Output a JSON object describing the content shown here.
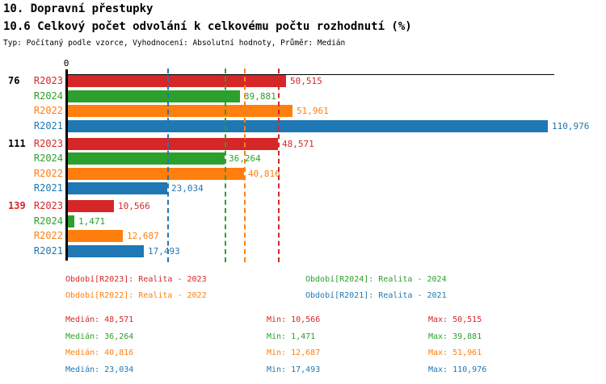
{
  "title1": "10. Dopravní přestupky",
  "title2": "10.6 Celkový počet odvolání k celkovému počtu rozhodnutí (%)",
  "subtitle": "Typ: Počítaný podle vzorce, Vyhodnocení: Absolutní hodnoty, Průměr: Medián",
  "axis": {
    "zero_label": "0"
  },
  "colors": {
    "R2023": "#d62728",
    "R2024": "#2ca02c",
    "R2022": "#ff7f0e",
    "R2021": "#1f77b4",
    "axis": "#000000",
    "group_label_default": "#000000",
    "group_label_alert": "#d62728"
  },
  "chart_data": {
    "type": "bar",
    "orientation": "horizontal",
    "xlim": [
      0,
      111500
    ],
    "grid": false,
    "series_order": [
      "R2023",
      "R2024",
      "R2022",
      "R2021"
    ],
    "groups": [
      {
        "label": "76",
        "label_color": "#000000",
        "bars": [
          {
            "series": "R2023",
            "value": 50515,
            "display": "50,515"
          },
          {
            "series": "R2024",
            "value": 39881,
            "display": "39,881"
          },
          {
            "series": "R2022",
            "value": 51961,
            "display": "51,961"
          },
          {
            "series": "R2021",
            "value": 110976,
            "display": "110,976"
          }
        ]
      },
      {
        "label": "111",
        "label_color": "#000000",
        "bars": [
          {
            "series": "R2023",
            "value": 48571,
            "display": "48,571"
          },
          {
            "series": "R2024",
            "value": 36264,
            "display": "36,264"
          },
          {
            "series": "R2022",
            "value": 40816,
            "display": "40,816"
          },
          {
            "series": "R2021",
            "value": 23034,
            "display": "23,034"
          }
        ]
      },
      {
        "label": "139",
        "label_color": "#d62728",
        "bars": [
          {
            "series": "R2023",
            "value": 10566,
            "display": "10,566"
          },
          {
            "series": "R2024",
            "value": 1471,
            "display": "1,471"
          },
          {
            "series": "R2022",
            "value": 12687,
            "display": "12,687"
          },
          {
            "series": "R2021",
            "value": 17493,
            "display": "17,493"
          }
        ]
      }
    ],
    "median_lines": [
      {
        "series": "R2021",
        "value": 23034
      },
      {
        "series": "R2024",
        "value": 36264
      },
      {
        "series": "R2022",
        "value": 40816
      },
      {
        "series": "R2023",
        "value": 48571
      }
    ]
  },
  "legend": [
    {
      "series": "R2023",
      "label": "Období[R2023]: Realita - 2023"
    },
    {
      "series": "R2024",
      "label": "Období[R2024]: Realita - 2024"
    },
    {
      "series": "R2022",
      "label": "Období[R2022]: Realita - 2022"
    },
    {
      "series": "R2021",
      "label": "Období[R2021]: Realita - 2021"
    }
  ],
  "stats_labels": {
    "median": "Medián",
    "min": "Min",
    "max": "Max"
  },
  "stats": [
    {
      "series": "R2023",
      "median": "48,571",
      "min": "10,566",
      "max": "50,515"
    },
    {
      "series": "R2024",
      "median": "36,264",
      "min": "1,471",
      "max": "39,881"
    },
    {
      "series": "R2022",
      "median": "40,816",
      "min": "12,687",
      "max": "51,961"
    },
    {
      "series": "R2021",
      "median": "23,034",
      "min": "17,493",
      "max": "110,976"
    }
  ]
}
